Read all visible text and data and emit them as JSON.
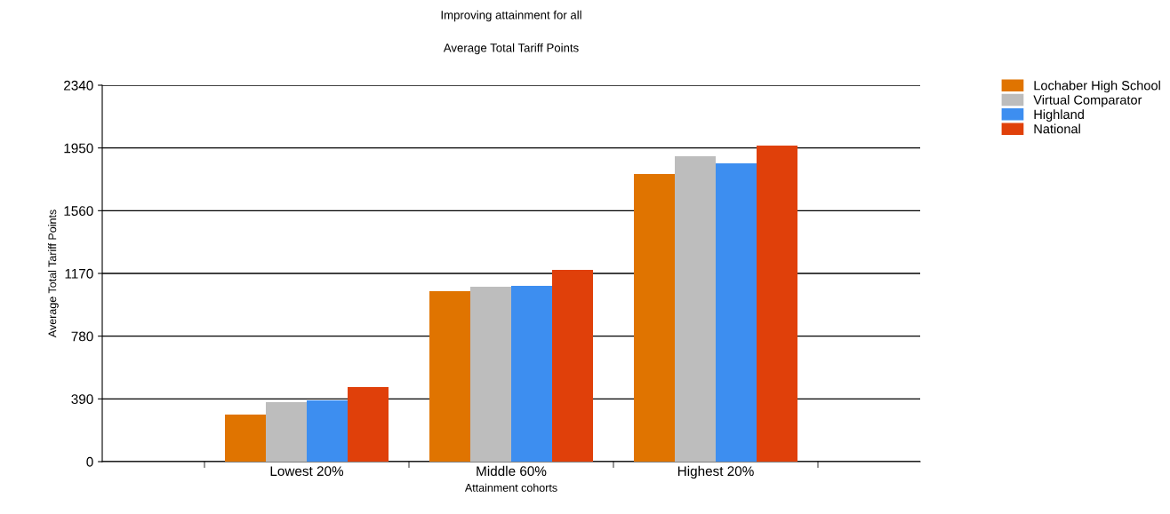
{
  "chart_data": {
    "type": "bar",
    "title": "Improving attainment for all",
    "subtitle": "Average Total Tariff Points",
    "xlabel": "Attainment cohorts",
    "ylabel": "Average Total Tariff Points",
    "categories": [
      "Lowest 20%",
      "Middle 60%",
      "Highest 20%"
    ],
    "series": [
      {
        "name": "Lochaber High School",
        "color": "#e07400",
        "values": [
          292,
          1060,
          1788
        ]
      },
      {
        "name": "Virtual Comparator",
        "color": "#bdbdbd",
        "values": [
          370,
          1087,
          1899
        ]
      },
      {
        "name": "Highland",
        "color": "#3d8ef0",
        "values": [
          381,
          1093,
          1854
        ]
      },
      {
        "name": "National",
        "color": "#e0400a",
        "values": [
          464,
          1192,
          1965
        ]
      }
    ],
    "ylim": [
      0,
      2340
    ],
    "yticks": [
      0,
      390,
      780,
      1170,
      1560,
      1950,
      2340
    ],
    "grid": "y",
    "legend": "top right"
  }
}
